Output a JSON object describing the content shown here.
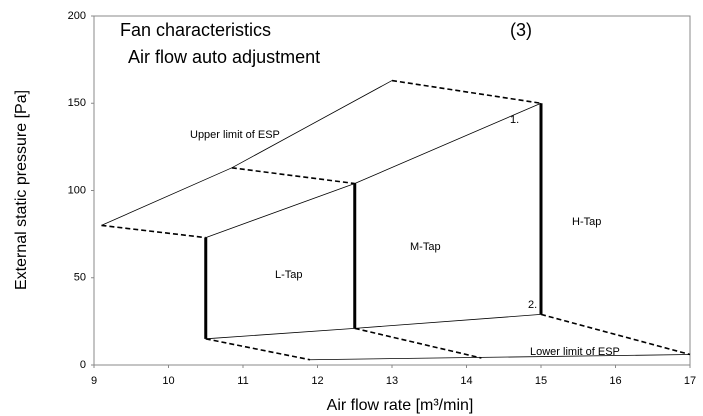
{
  "chart_data": {
    "type": "line",
    "title": "Fan characteristics",
    "subtitle": "Air flow auto adjustment",
    "annotations": [
      "(3)",
      "Upper limit of ESP",
      "L-Tap",
      "M-Tap",
      "H-Tap",
      "1.",
      "2.",
      "Lower limit of ESP"
    ],
    "x_label": "Air flow rate [m³/min]",
    "y_label": "External static pressure [Pa]",
    "xlim": [
      9,
      17
    ],
    "xticks": [
      9,
      10,
      11,
      12,
      13,
      14,
      15,
      16,
      17
    ],
    "ylim": [
      0,
      200
    ],
    "yticks": [
      0,
      50,
      100,
      150,
      200
    ],
    "grid": false,
    "series": [
      {
        "color": "#000000",
        "dashed": false,
        "thick": false,
        "x": [
          9.1,
          10.85,
          13
        ],
        "values": [
          80,
          113,
          163
        ]
      },
      {
        "color": "#000000",
        "dashed": true,
        "thick": false,
        "x": [
          13,
          15
        ],
        "values": [
          163,
          150
        ]
      },
      {
        "color": "#000000",
        "dashed": true,
        "thick": false,
        "x": [
          10.85,
          12.5
        ],
        "values": [
          113,
          104
        ]
      },
      {
        "color": "#000000",
        "dashed": true,
        "thick": false,
        "x": [
          9.1,
          10.5
        ],
        "values": [
          80,
          73
        ]
      },
      {
        "color": "#000000",
        "dashed": false,
        "thick": false,
        "x": [
          10.5,
          12.5,
          15
        ],
        "values": [
          73,
          104,
          150
        ]
      },
      {
        "color": "#000000",
        "dashed": false,
        "thick": true,
        "x": [
          10.5,
          10.5
        ],
        "values": [
          15,
          73
        ]
      },
      {
        "color": "#000000",
        "dashed": false,
        "thick": true,
        "x": [
          12.5,
          12.5
        ],
        "values": [
          21,
          104
        ]
      },
      {
        "color": "#000000",
        "dashed": false,
        "thick": true,
        "x": [
          15,
          15
        ],
        "values": [
          29,
          150
        ]
      },
      {
        "color": "#000000",
        "dashed": false,
        "thick": false,
        "x": [
          10.5,
          12.5,
          15
        ],
        "values": [
          15,
          21,
          29
        ]
      },
      {
        "color": "#000000",
        "dashed": true,
        "thick": false,
        "x": [
          10.5,
          11.9
        ],
        "values": [
          15,
          3
        ]
      },
      {
        "color": "#000000",
        "dashed": true,
        "thick": false,
        "x": [
          12.5,
          14.2
        ],
        "values": [
          21,
          4
        ]
      },
      {
        "color": "#000000",
        "dashed": true,
        "thick": false,
        "x": [
          15,
          17
        ],
        "values": [
          29,
          6
        ]
      },
      {
        "color": "#000000",
        "dashed": false,
        "thick": false,
        "x": [
          11.9,
          17
        ],
        "values": [
          3,
          6
        ]
      }
    ]
  }
}
